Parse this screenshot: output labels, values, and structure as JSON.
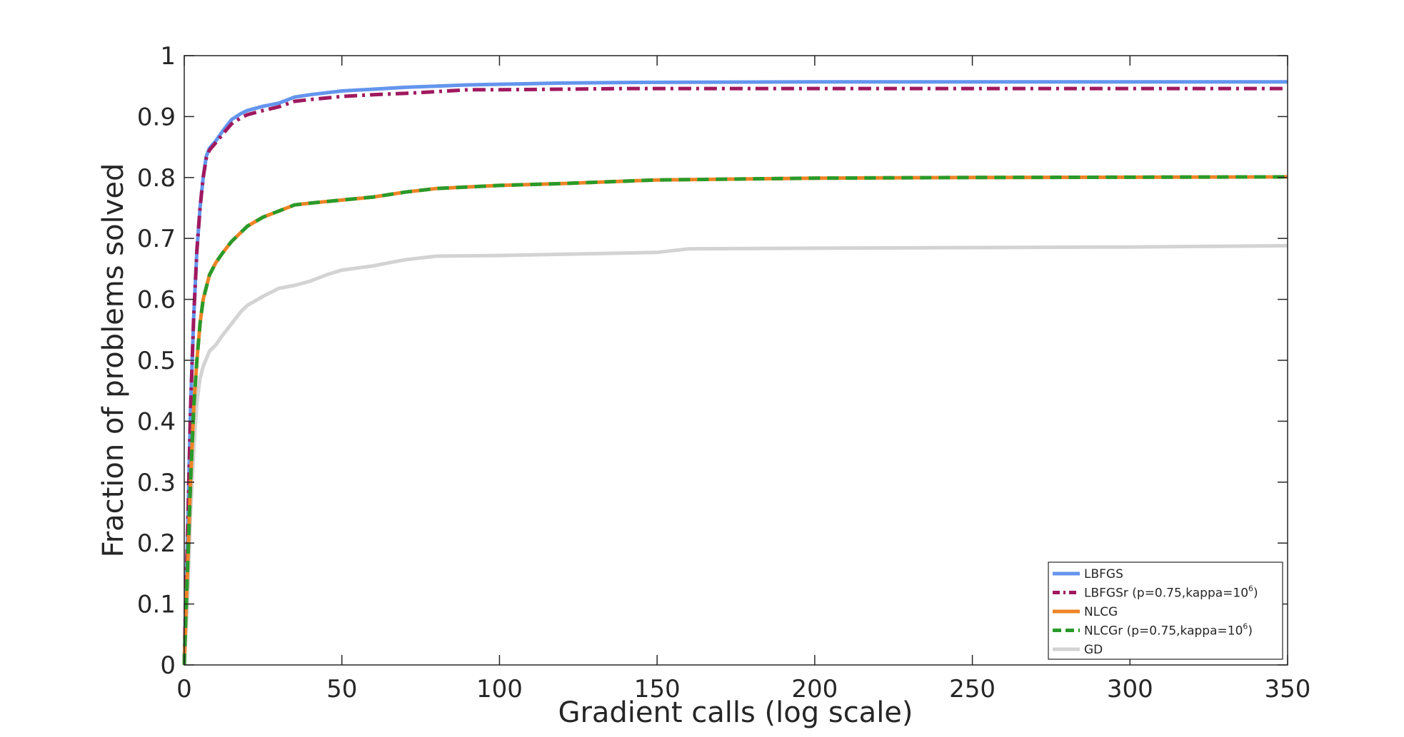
{
  "chart_data": {
    "type": "line",
    "title": "",
    "xlabel": "Gradient calls (log scale)",
    "ylabel": "Fraction of problems solved",
    "xlim": [
      0,
      350
    ],
    "ylim": [
      0,
      1
    ],
    "xticks": [
      0,
      50,
      100,
      150,
      200,
      250,
      300,
      350
    ],
    "xtick_labels": [
      "0",
      "50",
      "100",
      "150",
      "200",
      "250",
      "300",
      "350"
    ],
    "yticks": [
      0,
      0.1,
      0.2,
      0.3,
      0.4,
      0.5,
      0.6,
      0.7,
      0.8,
      0.9,
      1
    ],
    "ytick_labels": [
      "0",
      "0.1",
      "0.2",
      "0.3",
      "0.4",
      "0.5",
      "0.6",
      "0.7",
      "0.8",
      "0.9",
      "1"
    ],
    "grid": false,
    "legend_position": "bottom-right",
    "series": [
      {
        "name": "LBFGS",
        "legend_sup": "",
        "legend_tail": "",
        "color": "#6495ED",
        "style": "solid",
        "points": [
          [
            0,
            0
          ],
          [
            0.5,
            0.12
          ],
          [
            1,
            0.2
          ],
          [
            2,
            0.42
          ],
          [
            3,
            0.57
          ],
          [
            4,
            0.68
          ],
          [
            5,
            0.75
          ],
          [
            6,
            0.8
          ],
          [
            7,
            0.835
          ],
          [
            8,
            0.848
          ],
          [
            10,
            0.86
          ],
          [
            12,
            0.875
          ],
          [
            15,
            0.895
          ],
          [
            18,
            0.905
          ],
          [
            20,
            0.91
          ],
          [
            25,
            0.917
          ],
          [
            30,
            0.922
          ],
          [
            35,
            0.932
          ],
          [
            40,
            0.936
          ],
          [
            50,
            0.942
          ],
          [
            60,
            0.945
          ],
          [
            70,
            0.948
          ],
          [
            80,
            0.95
          ],
          [
            90,
            0.952
          ],
          [
            100,
            0.953
          ],
          [
            120,
            0.955
          ],
          [
            140,
            0.956
          ],
          [
            200,
            0.957
          ],
          [
            350,
            0.957
          ]
        ]
      },
      {
        "name": "LBFGSr (p=0.75,kappa=10",
        "legend_sup": "6",
        "legend_tail": ")",
        "color": "#A0195F",
        "style": "dashdot",
        "points": [
          [
            0,
            0
          ],
          [
            0.5,
            0.12
          ],
          [
            1,
            0.2
          ],
          [
            2,
            0.42
          ],
          [
            3,
            0.57
          ],
          [
            4,
            0.68
          ],
          [
            5,
            0.75
          ],
          [
            6,
            0.8
          ],
          [
            7,
            0.832
          ],
          [
            8,
            0.845
          ],
          [
            10,
            0.857
          ],
          [
            12,
            0.87
          ],
          [
            15,
            0.888
          ],
          [
            18,
            0.898
          ],
          [
            20,
            0.903
          ],
          [
            25,
            0.91
          ],
          [
            30,
            0.916
          ],
          [
            35,
            0.925
          ],
          [
            40,
            0.928
          ],
          [
            50,
            0.933
          ],
          [
            60,
            0.936
          ],
          [
            70,
            0.938
          ],
          [
            80,
            0.941
          ],
          [
            90,
            0.944
          ],
          [
            100,
            0.944
          ],
          [
            120,
            0.945
          ],
          [
            140,
            0.946
          ],
          [
            200,
            0.946
          ],
          [
            350,
            0.946
          ]
        ]
      },
      {
        "name": "NLCG",
        "legend_sup": "",
        "legend_tail": "",
        "color": "#EE8425",
        "style": "solid",
        "points": [
          [
            0,
            0
          ],
          [
            0.5,
            0.08
          ],
          [
            1,
            0.15
          ],
          [
            2,
            0.3
          ],
          [
            3,
            0.42
          ],
          [
            4,
            0.5
          ],
          [
            5,
            0.56
          ],
          [
            6,
            0.6
          ],
          [
            8,
            0.64
          ],
          [
            10,
            0.66
          ],
          [
            12,
            0.675
          ],
          [
            15,
            0.695
          ],
          [
            20,
            0.72
          ],
          [
            25,
            0.735
          ],
          [
            30,
            0.745
          ],
          [
            35,
            0.755
          ],
          [
            40,
            0.758
          ],
          [
            50,
            0.763
          ],
          [
            60,
            0.768
          ],
          [
            70,
            0.776
          ],
          [
            80,
            0.782
          ],
          [
            100,
            0.787
          ],
          [
            120,
            0.79
          ],
          [
            150,
            0.796
          ],
          [
            200,
            0.799
          ],
          [
            250,
            0.8
          ],
          [
            350,
            0.801
          ]
        ]
      },
      {
        "name": "NLCGr (p=0.75,kappa=10",
        "legend_sup": "6",
        "legend_tail": ")",
        "color": "#2A9A2A",
        "style": "dashed",
        "points": [
          [
            0,
            0
          ],
          [
            0.5,
            0.08
          ],
          [
            1,
            0.15
          ],
          [
            2,
            0.3
          ],
          [
            3,
            0.42
          ],
          [
            4,
            0.5
          ],
          [
            5,
            0.56
          ],
          [
            6,
            0.6
          ],
          [
            8,
            0.64
          ],
          [
            10,
            0.66
          ],
          [
            12,
            0.675
          ],
          [
            15,
            0.695
          ],
          [
            20,
            0.72
          ],
          [
            25,
            0.735
          ],
          [
            30,
            0.745
          ],
          [
            35,
            0.755
          ],
          [
            40,
            0.758
          ],
          [
            50,
            0.763
          ],
          [
            60,
            0.768
          ],
          [
            70,
            0.776
          ],
          [
            80,
            0.782
          ],
          [
            100,
            0.787
          ],
          [
            120,
            0.79
          ],
          [
            150,
            0.796
          ],
          [
            200,
            0.799
          ],
          [
            250,
            0.8
          ],
          [
            350,
            0.801
          ]
        ]
      },
      {
        "name": "GD",
        "legend_sup": "",
        "legend_tail": "",
        "color": "#D3D3D3",
        "style": "solid",
        "points": [
          [
            0,
            0
          ],
          [
            0.5,
            0.05
          ],
          [
            1,
            0.1
          ],
          [
            2,
            0.25
          ],
          [
            3,
            0.35
          ],
          [
            4,
            0.43
          ],
          [
            5,
            0.47
          ],
          [
            6,
            0.49
          ],
          [
            8,
            0.515
          ],
          [
            10,
            0.525
          ],
          [
            12,
            0.54
          ],
          [
            15,
            0.56
          ],
          [
            18,
            0.58
          ],
          [
            20,
            0.59
          ],
          [
            25,
            0.605
          ],
          [
            30,
            0.618
          ],
          [
            35,
            0.623
          ],
          [
            40,
            0.63
          ],
          [
            45,
            0.64
          ],
          [
            50,
            0.648
          ],
          [
            60,
            0.655
          ],
          [
            70,
            0.665
          ],
          [
            80,
            0.671
          ],
          [
            100,
            0.672
          ],
          [
            120,
            0.674
          ],
          [
            150,
            0.677
          ],
          [
            160,
            0.683
          ],
          [
            200,
            0.684
          ],
          [
            300,
            0.686
          ],
          [
            350,
            0.688
          ]
        ]
      }
    ]
  }
}
